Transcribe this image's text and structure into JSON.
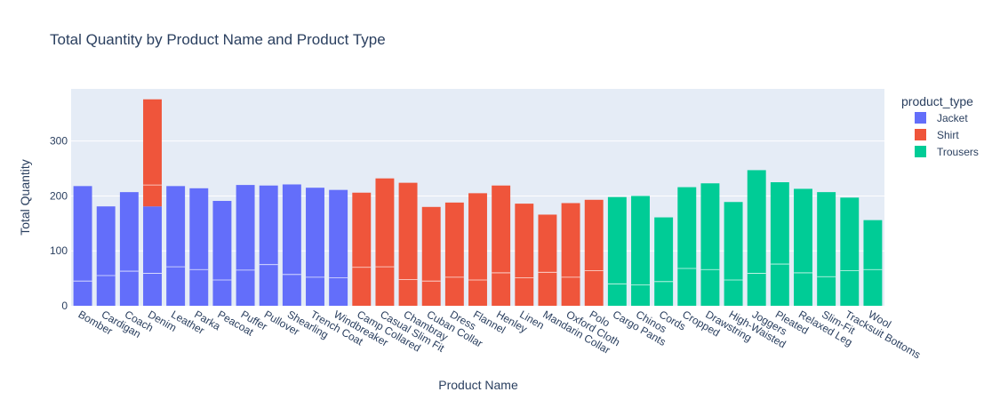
{
  "chart_data": {
    "type": "bar",
    "stacked": true,
    "title": "Total Quantity by Product Name and Product Type",
    "xlabel": "Product Name",
    "ylabel": "Total Quantity",
    "ylim": [
      0,
      395
    ],
    "yticks": [
      0,
      100,
      200,
      300
    ],
    "legend_title": "product_type",
    "legend_position": "right",
    "grid": true,
    "categories": [
      "Bomber",
      "Cardigan",
      "Coach",
      "Denim",
      "Leather",
      "Parka",
      "Peacoat",
      "Puffer",
      "Pullover",
      "Shearling",
      "Trench Coat",
      "Windbreaker",
      "Camp Collared",
      "Casual Slim Fit",
      "Chambray",
      "Cuban Collar",
      "Dress",
      "Flannel",
      "Henley",
      "Linen",
      "Mandarin Collar",
      "Oxford Cloth",
      "Polo",
      "Cargo Pants",
      "Chinos",
      "Cords",
      "Cropped",
      "Drawstring",
      "High-Waisted",
      "Joggers",
      "Pleated",
      "Relaxed Leg",
      "Slim-Fit",
      "Tracksuit Bottoms",
      "Wool"
    ],
    "series": [
      {
        "name": "Jacket",
        "color": "#636efa",
        "values": [
          218,
          181,
          207,
          181,
          218,
          214,
          191,
          220,
          219,
          221,
          215,
          211,
          0,
          0,
          0,
          0,
          0,
          0,
          0,
          0,
          0,
          0,
          0,
          0,
          0,
          0,
          0,
          0,
          0,
          0,
          0,
          0,
          0,
          0,
          0
        ]
      },
      {
        "name": "Shirt",
        "color": "#ef553b",
        "values": [
          0,
          0,
          0,
          195,
          0,
          0,
          0,
          0,
          0,
          0,
          0,
          0,
          206,
          232,
          224,
          180,
          188,
          205,
          219,
          186,
          166,
          187,
          193,
          0,
          0,
          0,
          0,
          0,
          0,
          0,
          0,
          0,
          0,
          0,
          0
        ]
      },
      {
        "name": "Trousers",
        "color": "#00cc96",
        "values": [
          0,
          0,
          0,
          0,
          0,
          0,
          0,
          0,
          0,
          0,
          0,
          0,
          0,
          0,
          0,
          0,
          0,
          0,
          0,
          0,
          0,
          0,
          0,
          198,
          200,
          161,
          216,
          223,
          189,
          247,
          225,
          213,
          207,
          197,
          156
        ]
      }
    ],
    "segment_breaks": [
      [
        45
      ],
      [
        55
      ],
      [
        63
      ],
      [
        59,
        220
      ],
      [
        71
      ],
      [
        66
      ],
      [
        47
      ],
      [
        65
      ],
      [
        75
      ],
      [
        57
      ],
      [
        52
      ],
      [
        51
      ],
      [
        70
      ],
      [
        71
      ],
      [
        48
      ],
      [
        45
      ],
      [
        52
      ],
      [
        47
      ],
      [
        60
      ],
      [
        51
      ],
      [
        61
      ],
      [
        52
      ],
      [
        64
      ],
      [
        40
      ],
      [
        38
      ],
      [
        44
      ],
      [
        68
      ],
      [
        66
      ],
      [
        47
      ],
      [
        59
      ],
      [
        76
      ],
      [
        60
      ],
      [
        53
      ],
      [
        64
      ],
      [
        66
      ]
    ]
  }
}
